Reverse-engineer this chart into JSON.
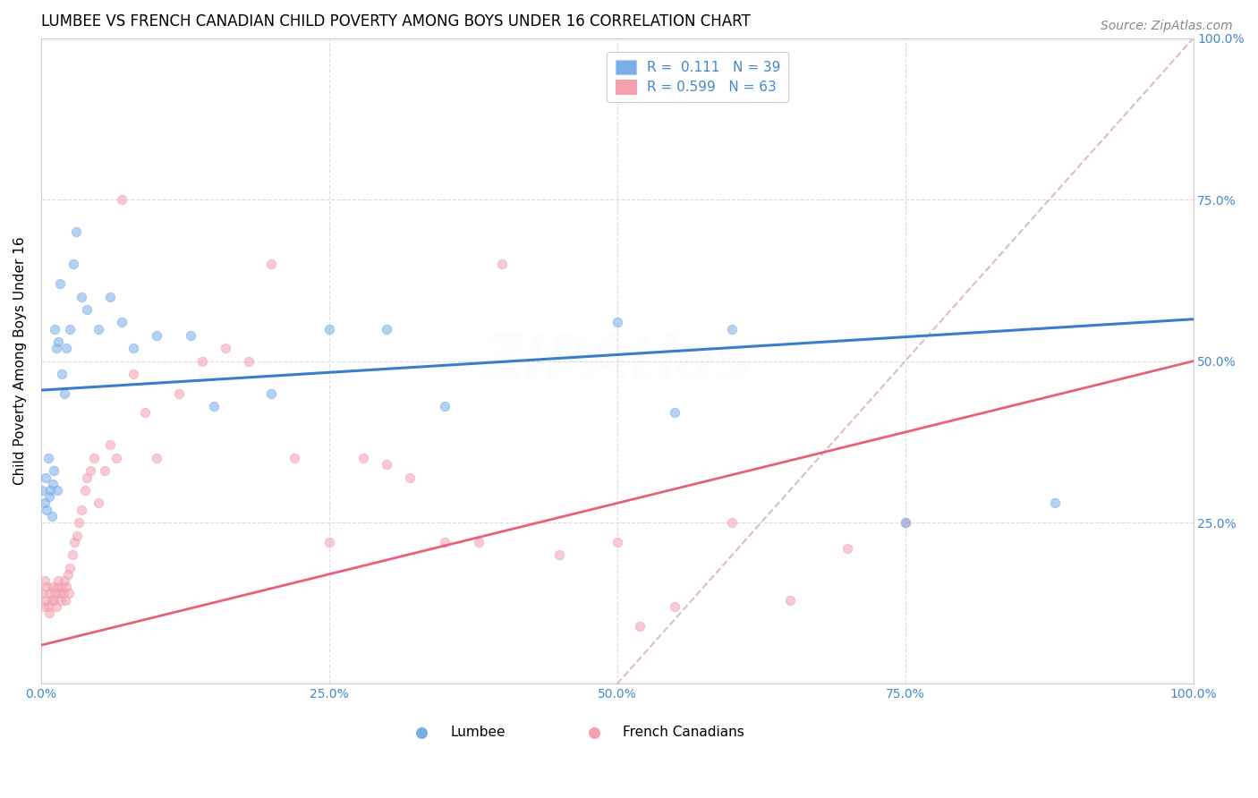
{
  "title": "LUMBEE VS FRENCH CANADIAN CHILD POVERTY AMONG BOYS UNDER 16 CORRELATION CHART",
  "source": "Source: ZipAtlas.com",
  "ylabel": "Child Poverty Among Boys Under 16",
  "watermark": "ZIPAtlas",
  "lumbee_R": 0.111,
  "lumbee_N": 39,
  "french_R": 0.599,
  "french_N": 63,
  "lumbee_color": "#7aaee8",
  "french_color": "#f4a0b0",
  "lumbee_line_color": "#3a7dcc",
  "french_line_color": "#e8607a",
  "ref_line_color": "#ddbbcc",
  "tick_color": "#4488cc",
  "lumbee_scatter_x": [
    0.001,
    0.003,
    0.004,
    0.005,
    0.006,
    0.007,
    0.008,
    0.009,
    0.01,
    0.011,
    0.012,
    0.013,
    0.014,
    0.015,
    0.016,
    0.018,
    0.02,
    0.022,
    0.025,
    0.028,
    0.03,
    0.035,
    0.04,
    0.05,
    0.06,
    0.07,
    0.08,
    0.1,
    0.13,
    0.15,
    0.2,
    0.25,
    0.3,
    0.35,
    0.5,
    0.55,
    0.6,
    0.75,
    0.88
  ],
  "lumbee_scatter_y": [
    0.3,
    0.28,
    0.32,
    0.27,
    0.35,
    0.29,
    0.3,
    0.26,
    0.31,
    0.33,
    0.55,
    0.52,
    0.3,
    0.53,
    0.62,
    0.48,
    0.45,
    0.52,
    0.55,
    0.65,
    0.7,
    0.6,
    0.58,
    0.55,
    0.6,
    0.56,
    0.52,
    0.54,
    0.54,
    0.43,
    0.45,
    0.55,
    0.55,
    0.43,
    0.56,
    0.42,
    0.55,
    0.25,
    0.28
  ],
  "french_scatter_x": [
    0.001,
    0.002,
    0.003,
    0.004,
    0.005,
    0.006,
    0.007,
    0.008,
    0.009,
    0.01,
    0.011,
    0.012,
    0.013,
    0.014,
    0.015,
    0.016,
    0.017,
    0.018,
    0.019,
    0.02,
    0.021,
    0.022,
    0.023,
    0.024,
    0.025,
    0.027,
    0.029,
    0.031,
    0.033,
    0.035,
    0.038,
    0.04,
    0.043,
    0.046,
    0.05,
    0.055,
    0.06,
    0.065,
    0.07,
    0.08,
    0.09,
    0.1,
    0.12,
    0.14,
    0.16,
    0.18,
    0.2,
    0.22,
    0.25,
    0.28,
    0.3,
    0.32,
    0.35,
    0.38,
    0.4,
    0.45,
    0.5,
    0.52,
    0.55,
    0.6,
    0.65,
    0.7,
    0.75
  ],
  "french_scatter_y": [
    0.14,
    0.12,
    0.16,
    0.13,
    0.15,
    0.12,
    0.11,
    0.14,
    0.13,
    0.15,
    0.13,
    0.14,
    0.12,
    0.15,
    0.16,
    0.14,
    0.13,
    0.15,
    0.14,
    0.16,
    0.13,
    0.15,
    0.17,
    0.14,
    0.18,
    0.2,
    0.22,
    0.23,
    0.25,
    0.27,
    0.3,
    0.32,
    0.33,
    0.35,
    0.28,
    0.33,
    0.37,
    0.35,
    0.75,
    0.48,
    0.42,
    0.35,
    0.45,
    0.5,
    0.52,
    0.5,
    0.65,
    0.35,
    0.22,
    0.35,
    0.34,
    0.32,
    0.22,
    0.22,
    0.65,
    0.2,
    0.22,
    0.09,
    0.12,
    0.25,
    0.13,
    0.21,
    0.25
  ],
  "lumbee_line_x0": 0.0,
  "lumbee_line_y0": 0.455,
  "lumbee_line_x1": 1.0,
  "lumbee_line_y1": 0.565,
  "french_line_x0": 0.0,
  "french_line_y0": 0.06,
  "french_line_x1": 1.0,
  "french_line_y1": 0.5,
  "ref_line_x0": 0.5,
  "ref_line_y0": 0.0,
  "ref_line_x1": 1.0,
  "ref_line_y1": 1.0,
  "xlim": [
    0.0,
    1.0
  ],
  "ylim": [
    0.0,
    1.0
  ],
  "xticks": [
    0.0,
    0.25,
    0.5,
    0.75,
    1.0
  ],
  "yticks": [
    0.25,
    0.5,
    0.75,
    1.0
  ],
  "xticklabels": [
    "0.0%",
    "25.0%",
    "50.0%",
    "75.0%",
    "100.0%"
  ],
  "yticklabels_right": [
    "25.0%",
    "50.0%",
    "75.0%",
    "100.0%"
  ],
  "background_color": "#ffffff",
  "grid_color": "#dddddd",
  "title_fontsize": 12,
  "axis_fontsize": 11,
  "tick_fontsize": 10,
  "legend_fontsize": 11,
  "source_fontsize": 10,
  "watermark_fontsize": 48,
  "watermark_alpha": 0.06,
  "scatter_size": 55,
  "scatter_alpha": 0.55,
  "scatter_lw": 0.8
}
